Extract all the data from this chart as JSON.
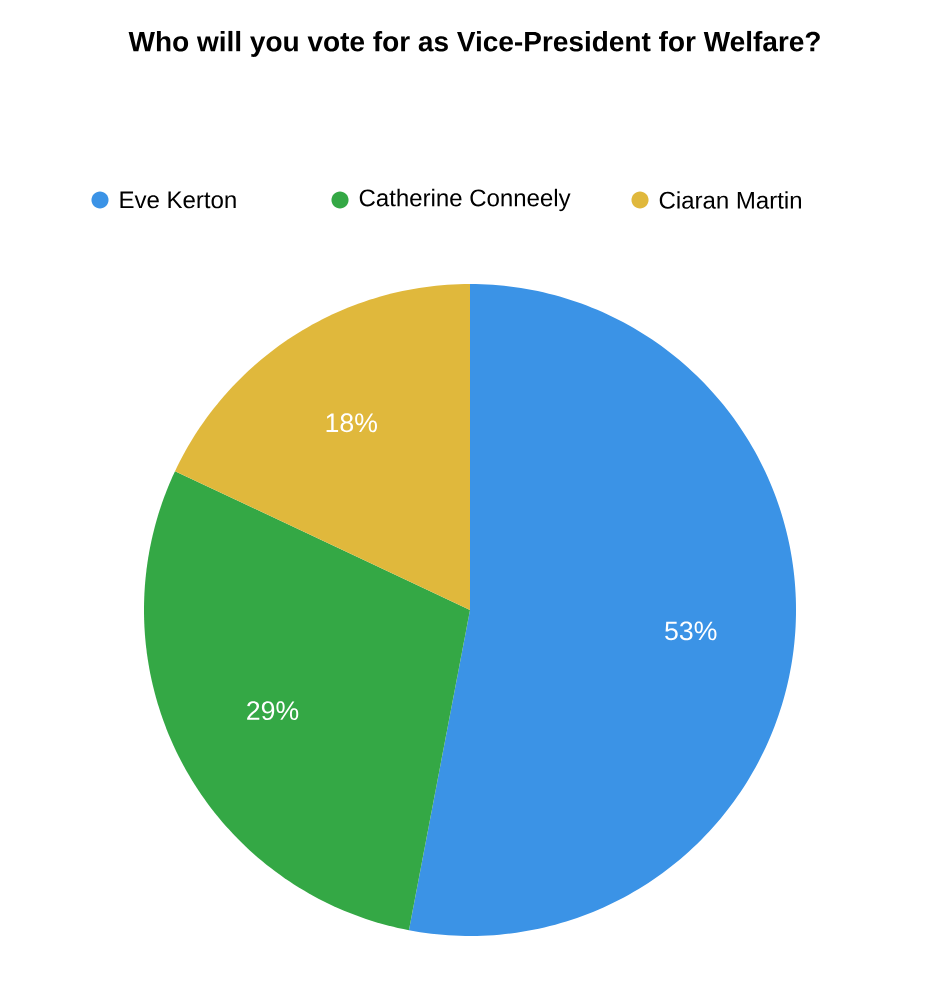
{
  "chart_data": {
    "type": "pie",
    "title": "Who will you vote for as Vice-President for Welfare?",
    "categories": [
      "Eve Kerton",
      "Catherine Conneely",
      "Ciaran Martin"
    ],
    "values": [
      53,
      29,
      18
    ],
    "colors": [
      "#3b93e6",
      "#34a845",
      "#e0b83c"
    ],
    "value_labels": [
      "53%",
      "29%",
      "18%"
    ],
    "legend": "top"
  }
}
